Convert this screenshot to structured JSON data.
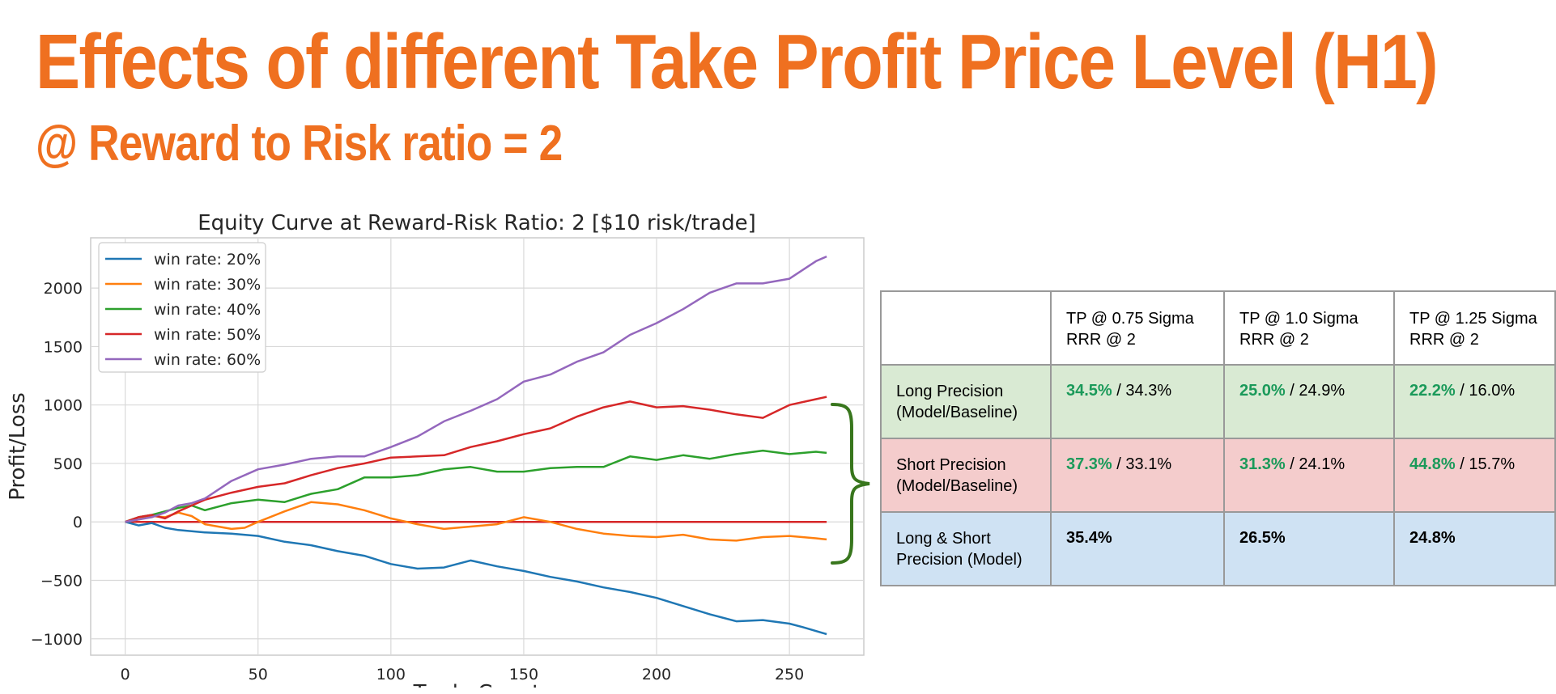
{
  "slide": {
    "title": "Effects of different Take Profit Price Level (H1)",
    "subtitle": "@ Reward to Risk ratio = 2"
  },
  "colors": {
    "accent": "#ef7020",
    "brace": "#38761d",
    "model_value": "#1b9a5a",
    "long_row": "#d9ead3",
    "short_row": "#f4cccc",
    "both_row": "#cfe2f3"
  },
  "chart_data": {
    "type": "line",
    "title": "Equity Curve at Reward-Risk Ratio: 2 [$10 risk/trade]",
    "xlabel": "Trade Count",
    "ylabel": "Profit/Loss",
    "xlim": [
      -13,
      278
    ],
    "ylim": [
      -1140,
      2430
    ],
    "xticks": [
      0,
      50,
      100,
      150,
      200,
      250
    ],
    "yticks": [
      -1000,
      -500,
      0,
      500,
      1000,
      1500,
      2000
    ],
    "grid": true,
    "legend_position": "top-left",
    "reference_line": {
      "y": 0,
      "color": "#d62728"
    },
    "series": [
      {
        "name": "win rate: 20%",
        "color": "#1f77b4",
        "points": [
          [
            0,
            0
          ],
          [
            5,
            -30
          ],
          [
            10,
            -10
          ],
          [
            15,
            -50
          ],
          [
            20,
            -70
          ],
          [
            25,
            -80
          ],
          [
            30,
            -90
          ],
          [
            40,
            -100
          ],
          [
            50,
            -120
          ],
          [
            60,
            -170
          ],
          [
            70,
            -200
          ],
          [
            80,
            -250
          ],
          [
            90,
            -290
          ],
          [
            100,
            -360
          ],
          [
            110,
            -400
          ],
          [
            120,
            -390
          ],
          [
            130,
            -330
          ],
          [
            140,
            -380
          ],
          [
            150,
            -420
          ],
          [
            160,
            -470
          ],
          [
            170,
            -510
          ],
          [
            180,
            -560
          ],
          [
            190,
            -600
          ],
          [
            200,
            -650
          ],
          [
            210,
            -720
          ],
          [
            220,
            -790
          ],
          [
            230,
            -850
          ],
          [
            240,
            -840
          ],
          [
            250,
            -870
          ],
          [
            255,
            -900
          ],
          [
            264,
            -960
          ]
        ]
      },
      {
        "name": "win rate: 30%",
        "color": "#ff7f0e",
        "points": [
          [
            0,
            0
          ],
          [
            5,
            20
          ],
          [
            10,
            50
          ],
          [
            15,
            40
          ],
          [
            20,
            80
          ],
          [
            25,
            50
          ],
          [
            30,
            -20
          ],
          [
            35,
            -40
          ],
          [
            40,
            -60
          ],
          [
            45,
            -50
          ],
          [
            50,
            0
          ],
          [
            60,
            90
          ],
          [
            70,
            170
          ],
          [
            80,
            150
          ],
          [
            90,
            100
          ],
          [
            100,
            30
          ],
          [
            110,
            -20
          ],
          [
            120,
            -60
          ],
          [
            130,
            -40
          ],
          [
            140,
            -20
          ],
          [
            150,
            40
          ],
          [
            160,
            0
          ],
          [
            170,
            -60
          ],
          [
            180,
            -100
          ],
          [
            190,
            -120
          ],
          [
            200,
            -130
          ],
          [
            210,
            -110
          ],
          [
            220,
            -150
          ],
          [
            230,
            -160
          ],
          [
            240,
            -130
          ],
          [
            250,
            -120
          ],
          [
            260,
            -140
          ],
          [
            264,
            -150
          ]
        ]
      },
      {
        "name": "win rate: 40%",
        "color": "#2ca02c",
        "points": [
          [
            0,
            0
          ],
          [
            5,
            40
          ],
          [
            10,
            60
          ],
          [
            15,
            90
          ],
          [
            20,
            120
          ],
          [
            25,
            140
          ],
          [
            30,
            100
          ],
          [
            40,
            160
          ],
          [
            50,
            190
          ],
          [
            60,
            170
          ],
          [
            70,
            240
          ],
          [
            80,
            280
          ],
          [
            90,
            380
          ],
          [
            100,
            380
          ],
          [
            110,
            400
          ],
          [
            120,
            450
          ],
          [
            130,
            470
          ],
          [
            140,
            430
          ],
          [
            150,
            430
          ],
          [
            160,
            460
          ],
          [
            170,
            470
          ],
          [
            180,
            470
          ],
          [
            190,
            560
          ],
          [
            200,
            530
          ],
          [
            210,
            570
          ],
          [
            220,
            540
          ],
          [
            230,
            580
          ],
          [
            240,
            610
          ],
          [
            250,
            580
          ],
          [
            260,
            600
          ],
          [
            264,
            590
          ]
        ]
      },
      {
        "name": "win rate: 50%",
        "color": "#d62728",
        "points": [
          [
            0,
            0
          ],
          [
            5,
            40
          ],
          [
            10,
            60
          ],
          [
            15,
            30
          ],
          [
            20,
            90
          ],
          [
            25,
            140
          ],
          [
            30,
            190
          ],
          [
            40,
            250
          ],
          [
            50,
            300
          ],
          [
            60,
            330
          ],
          [
            70,
            400
          ],
          [
            80,
            460
          ],
          [
            90,
            500
          ],
          [
            100,
            550
          ],
          [
            110,
            560
          ],
          [
            120,
            570
          ],
          [
            130,
            640
          ],
          [
            140,
            690
          ],
          [
            150,
            750
          ],
          [
            160,
            800
          ],
          [
            170,
            900
          ],
          [
            180,
            980
          ],
          [
            190,
            1030
          ],
          [
            200,
            980
          ],
          [
            210,
            990
          ],
          [
            220,
            960
          ],
          [
            230,
            920
          ],
          [
            240,
            890
          ],
          [
            250,
            1000
          ],
          [
            260,
            1050
          ],
          [
            264,
            1070
          ]
        ]
      },
      {
        "name": "win rate: 60%",
        "color": "#9467bd",
        "points": [
          [
            0,
            0
          ],
          [
            5,
            20
          ],
          [
            10,
            40
          ],
          [
            15,
            80
          ],
          [
            20,
            140
          ],
          [
            25,
            160
          ],
          [
            30,
            200
          ],
          [
            40,
            350
          ],
          [
            50,
            450
          ],
          [
            60,
            490
          ],
          [
            70,
            540
          ],
          [
            80,
            560
          ],
          [
            90,
            560
          ],
          [
            100,
            640
          ],
          [
            110,
            730
          ],
          [
            120,
            860
          ],
          [
            130,
            950
          ],
          [
            140,
            1050
          ],
          [
            150,
            1200
          ],
          [
            160,
            1260
          ],
          [
            170,
            1370
          ],
          [
            180,
            1450
          ],
          [
            190,
            1600
          ],
          [
            200,
            1700
          ],
          [
            210,
            1820
          ],
          [
            220,
            1960
          ],
          [
            230,
            2040
          ],
          [
            240,
            2040
          ],
          [
            250,
            2080
          ],
          [
            260,
            2230
          ],
          [
            264,
            2270
          ]
        ]
      }
    ]
  },
  "table": {
    "headers": [
      "",
      "TP @ 0.75 Sigma\nRRR @ 2",
      "TP @ 1.0 Sigma\nRRR @ 2",
      "TP @ 1.25 Sigma\nRRR @ 2"
    ],
    "rows": [
      {
        "label": "Long Precision\n(Model/Baseline)",
        "cells": [
          {
            "model": "34.5%",
            "baseline": " / 34.3%"
          },
          {
            "model": "25.0%",
            "baseline": " / 24.9%"
          },
          {
            "model": "22.2%",
            "baseline": " / 16.0%"
          }
        ]
      },
      {
        "label": "Short Precision\n(Model/Baseline)",
        "cells": [
          {
            "model": "37.3%",
            "baseline": " / 33.1%"
          },
          {
            "model": "31.3%",
            "baseline": " / 24.1%"
          },
          {
            "model": "44.8%",
            "baseline": " / 15.7%"
          }
        ]
      },
      {
        "label": "Long & Short\nPrecision (Model)",
        "cells": [
          {
            "value": "35.4%"
          },
          {
            "value": "26.5%"
          },
          {
            "value": "24.8%"
          }
        ]
      }
    ]
  }
}
